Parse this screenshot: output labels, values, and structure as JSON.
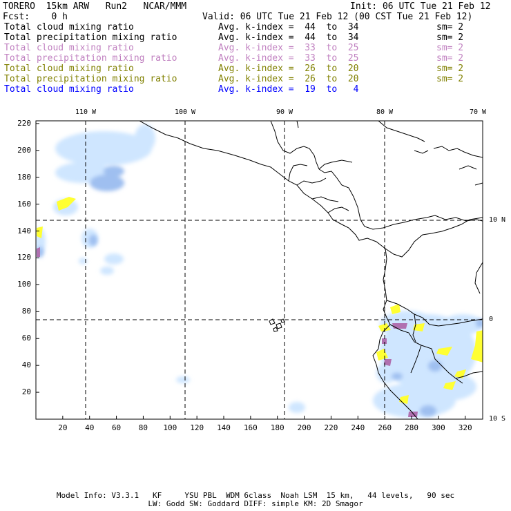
{
  "header": {
    "model": "TORERO  15km ARW   Run2   NCAR/MMM",
    "init": "Init: 06 UTC Tue 21 Feb 12",
    "fcst": "Fcst:    0 h",
    "valid": "Valid: 06 UTC Tue 21 Feb 12 (00 CST Tue 21 Feb 12)"
  },
  "legend": [
    {
      "field": "Total cloud mixing ratio",
      "stat": "Avg. k-index =  44  to  34",
      "sm": "sm= 2",
      "color": "#000000"
    },
    {
      "field": "Total precipitation mixing ratio",
      "stat": "Avg. k-index =  44  to  34",
      "sm": "sm= 2",
      "color": "#000000"
    },
    {
      "field": "Total cloud mixing ratio",
      "stat": "Avg. k-index =  33  to  25",
      "sm": "sm= 2",
      "color": "#c080c0"
    },
    {
      "field": "Total precipitation mixing ratio",
      "stat": "Avg. k-index =  33  to  25",
      "sm": "sm= 2",
      "color": "#c080c0"
    },
    {
      "field": "Total cloud mixing ratio",
      "stat": "Avg. k-index =  26  to  20",
      "sm": "sm= 2",
      "color": "#808000"
    },
    {
      "field": "Total precipitation mixing ratio",
      "stat": "Avg. k-index =  26  to  20",
      "sm": "sm= 2",
      "color": "#808000"
    },
    {
      "field": "Total cloud mixing ratio",
      "stat": "Avg. k-index =  19  to   4",
      "sm": "",
      "color": "#0000ff"
    }
  ],
  "map": {
    "lon_labels": [
      "110 W",
      "100 W",
      "90 W",
      "80 W",
      "70 W"
    ],
    "lat_labels": [
      "10 N",
      "0",
      "10 S"
    ],
    "y_ticks": [
      "220",
      "200",
      "180",
      "160",
      "140",
      "120",
      "100",
      "80",
      "60",
      "40",
      "20"
    ],
    "x_ticks": [
      "20",
      "40",
      "60",
      "80",
      "100",
      "120",
      "140",
      "160",
      "180",
      "200",
      "220",
      "240",
      "260",
      "280",
      "300",
      "320"
    ],
    "colors": {
      "cloud": "#cfe6ff",
      "cloud_dense": "#9fbff0",
      "yellow": "#ffff33",
      "purple": "#b070b0",
      "coast": "#000000"
    }
  },
  "footer": {
    "line1": "Model Info: V3.3.1   KF     YSU PBL  WDM 6class  Noah LSM  15 km,   44 levels,   90 sec",
    "line2": "LW: Godd SW: Goddard DIFF: simple KM: 2D Smagor"
  }
}
